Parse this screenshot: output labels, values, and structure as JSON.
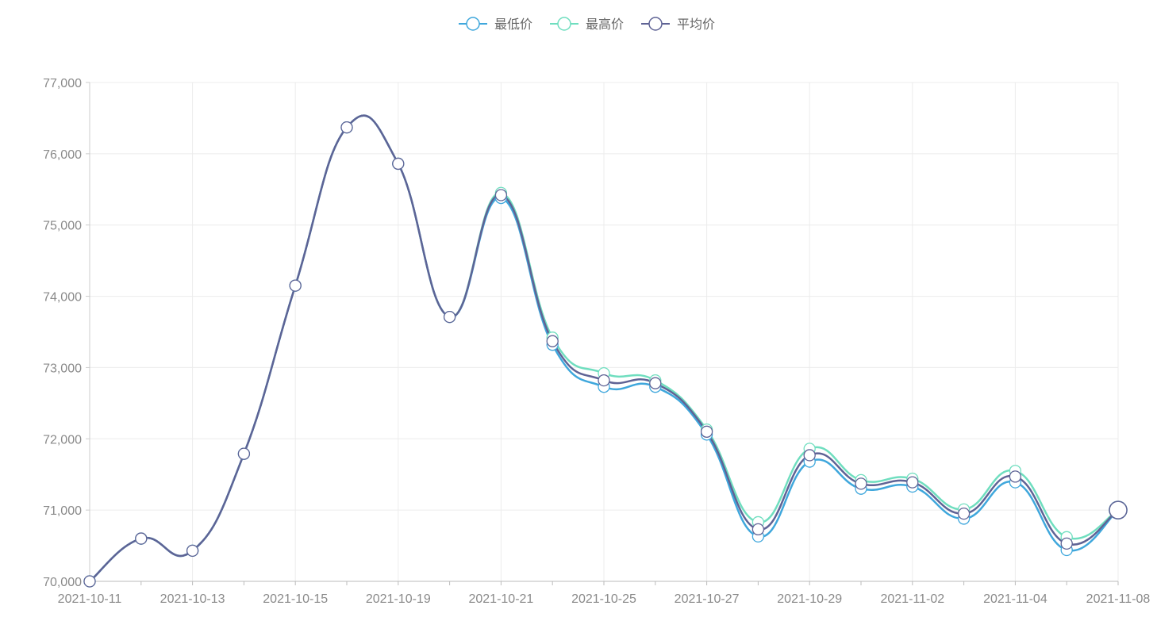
{
  "chart_data": {
    "type": "line",
    "title": "",
    "xlabel": "",
    "ylabel": "",
    "x": [
      "2021-10-11",
      "2021-10-12",
      "2021-10-13",
      "2021-10-14",
      "2021-10-15",
      "2021-10-18",
      "2021-10-19",
      "2021-10-20",
      "2021-10-21",
      "2021-10-22",
      "2021-10-25",
      "2021-10-26",
      "2021-10-27",
      "2021-10-28",
      "2021-10-29",
      "2021-11-01",
      "2021-11-02",
      "2021-11-03",
      "2021-11-04",
      "2021-11-05",
      "2021-11-08"
    ],
    "x_tick_labels": [
      "2021-10-11",
      "2021-10-13",
      "2021-10-15",
      "2021-10-19",
      "2021-10-21",
      "2021-10-25",
      "2021-10-27",
      "2021-10-29",
      "2021-11-02",
      "2021-11-04",
      "2021-11-08"
    ],
    "ylim": [
      70000,
      77000
    ],
    "y_ticks": [
      70000,
      71000,
      72000,
      73000,
      74000,
      75000,
      76000,
      77000
    ],
    "y_tick_labels": [
      "70,000",
      "71,000",
      "72,000",
      "73,000",
      "74,000",
      "75,000",
      "76,000",
      "77,000"
    ],
    "grid": true,
    "legend_position": "top-center",
    "series": [
      {
        "name": "最低价",
        "color": "#3fa7dc",
        "values": [
          70000,
          70600,
          70430,
          71790,
          74150,
          76370,
          75860,
          73710,
          75380,
          73320,
          72730,
          72730,
          72060,
          70630,
          71680,
          71300,
          71330,
          70880,
          71390,
          70440,
          71000
        ]
      },
      {
        "name": "最高价",
        "color": "#6fdebf",
        "values": [
          70000,
          70600,
          70430,
          71790,
          74150,
          76370,
          75860,
          73710,
          75450,
          73420,
          72920,
          72820,
          72130,
          70830,
          71860,
          71420,
          71440,
          71010,
          71550,
          70620,
          71000
        ]
      },
      {
        "name": "平均价",
        "color": "#5f6395",
        "values": [
          70000,
          70600,
          70430,
          71790,
          74150,
          76370,
          75860,
          73710,
          75420,
          73370,
          72820,
          72780,
          72100,
          70730,
          71770,
          71370,
          71390,
          70950,
          71470,
          70530,
          71000
        ]
      }
    ]
  }
}
